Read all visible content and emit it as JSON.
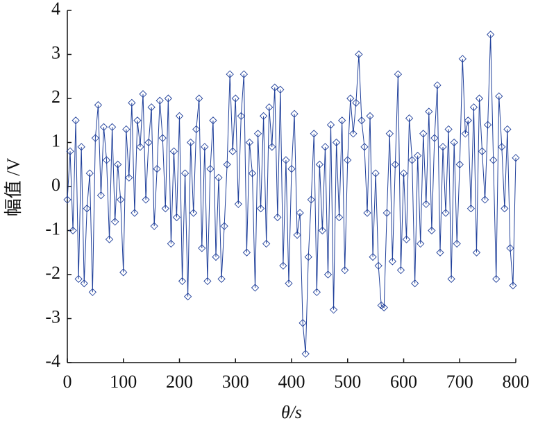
{
  "chart_data": {
    "type": "line",
    "x_label": "θ/s",
    "y_label": "幅值 /V",
    "xlim": [
      0,
      800
    ],
    "xticks": [
      0,
      100,
      200,
      300,
      400,
      500,
      600,
      700,
      800
    ],
    "ylim": [
      -4,
      4
    ],
    "yticks": [
      -4,
      -3,
      -2,
      -1,
      0,
      1,
      2,
      3,
      4
    ],
    "marker": "diamond",
    "color": "#1f3f9a",
    "x": [
      0,
      5,
      10,
      15,
      20,
      25,
      30,
      35,
      40,
      45,
      50,
      55,
      60,
      65,
      70,
      75,
      80,
      85,
      90,
      95,
      100,
      105,
      110,
      115,
      120,
      125,
      130,
      135,
      140,
      145,
      150,
      155,
      160,
      165,
      170,
      175,
      180,
      185,
      190,
      195,
      200,
      205,
      210,
      215,
      220,
      225,
      230,
      235,
      240,
      245,
      250,
      255,
      260,
      265,
      270,
      275,
      280,
      285,
      290,
      295,
      300,
      305,
      310,
      315,
      320,
      325,
      330,
      335,
      340,
      345,
      350,
      355,
      360,
      365,
      370,
      375,
      380,
      385,
      390,
      395,
      400,
      405,
      410,
      415,
      420,
      425,
      430,
      435,
      440,
      445,
      450,
      455,
      460,
      465,
      470,
      475,
      480,
      485,
      490,
      495,
      500,
      505,
      510,
      515,
      520,
      525,
      530,
      535,
      540,
      545,
      550,
      555,
      560,
      565,
      570,
      575,
      580,
      585,
      590,
      595,
      600,
      605,
      610,
      615,
      620,
      625,
      630,
      635,
      640,
      645,
      650,
      655,
      660,
      665,
      670,
      675,
      680,
      685,
      690,
      695,
      700,
      705,
      710,
      715,
      720,
      725,
      730,
      735,
      740,
      745,
      750,
      755,
      760,
      765,
      770,
      775,
      780,
      785,
      790,
      795,
      800
    ],
    "values": [
      -0.3,
      0.8,
      -1.0,
      1.5,
      -2.1,
      0.9,
      -2.2,
      -0.5,
      0.3,
      -2.4,
      1.1,
      1.85,
      -0.2,
      1.35,
      0.6,
      -1.2,
      1.35,
      -0.8,
      0.5,
      -0.3,
      -1.95,
      1.3,
      0.2,
      1.9,
      -0.6,
      1.5,
      0.9,
      2.1,
      -0.3,
      1.0,
      1.8,
      -0.9,
      0.4,
      1.95,
      1.1,
      -0.5,
      2.0,
      -1.3,
      0.8,
      -0.7,
      1.6,
      -2.15,
      0.3,
      -2.5,
      1.0,
      -0.6,
      1.3,
      2.0,
      -1.4,
      0.9,
      -2.15,
      0.4,
      1.5,
      -1.6,
      0.2,
      -2.1,
      -0.9,
      0.5,
      2.55,
      0.8,
      2.0,
      -0.4,
      1.6,
      2.55,
      -1.5,
      1.0,
      0.3,
      -2.3,
      1.2,
      -0.5,
      1.6,
      -1.3,
      1.8,
      0.9,
      2.25,
      -0.7,
      2.2,
      -1.8,
      0.6,
      -2.2,
      0.4,
      1.65,
      -1.1,
      -0.6,
      -3.1,
      -3.8,
      -1.6,
      -0.3,
      1.2,
      -2.4,
      0.5,
      -1.0,
      0.9,
      -2.0,
      1.4,
      -2.8,
      1.0,
      -0.7,
      1.5,
      -1.9,
      0.6,
      2.0,
      1.2,
      1.9,
      3.0,
      1.5,
      0.9,
      -0.6,
      1.6,
      -1.6,
      0.3,
      -1.8,
      -2.7,
      -2.75,
      -0.6,
      1.2,
      -1.7,
      0.5,
      2.55,
      -1.9,
      0.3,
      -1.2,
      1.55,
      0.6,
      -2.2,
      0.7,
      -1.3,
      1.2,
      -0.4,
      1.7,
      -1.0,
      1.1,
      2.3,
      -1.5,
      0.9,
      -0.6,
      1.3,
      -2.1,
      1.0,
      -1.3,
      0.5,
      2.9,
      1.2,
      1.5,
      -0.5,
      1.8,
      -1.5,
      2.0,
      0.8,
      -0.3,
      1.4,
      3.45,
      0.6,
      -2.1,
      2.05,
      0.9,
      -0.5,
      1.3,
      -1.4,
      -2.25,
      0.65
    ]
  }
}
